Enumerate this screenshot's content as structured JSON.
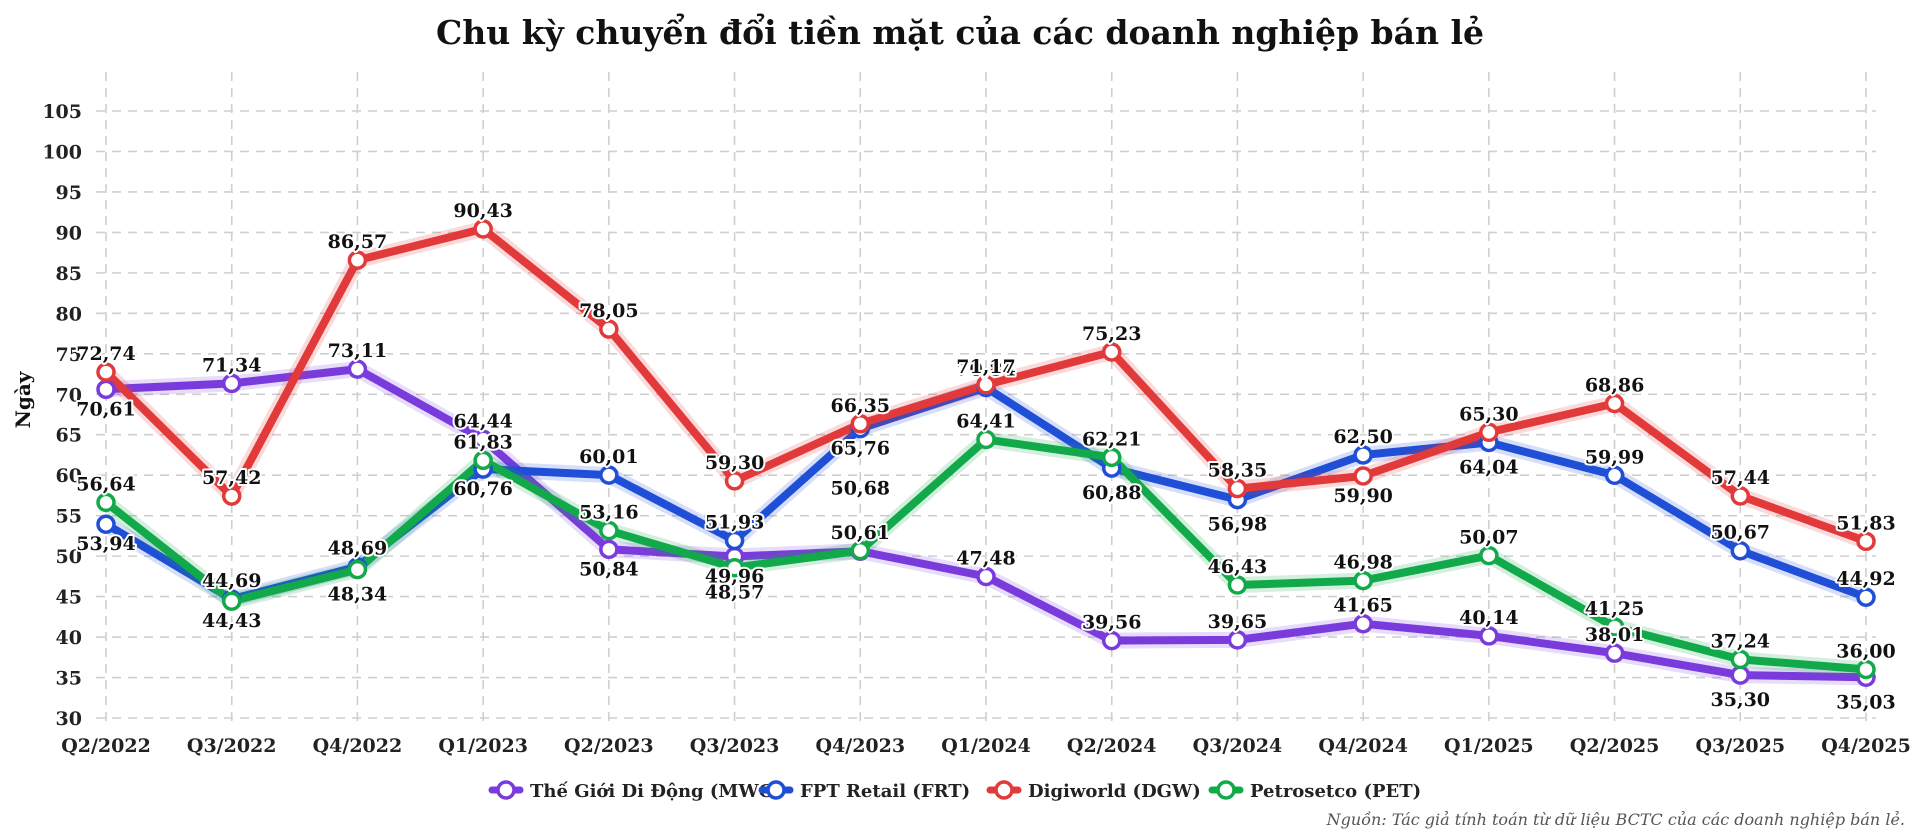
{
  "chart_data": {
    "type": "line",
    "title": "Chu kỳ chuyển đổi tiền mặt của các doanh nghiệp bán lẻ",
    "xlabel": "",
    "ylabel": "Ngày",
    "ylim": [
      30,
      105
    ],
    "yticks": [
      "30",
      "35",
      "40",
      "45",
      "50",
      "55",
      "60",
      "65",
      "70",
      "75",
      "80",
      "85",
      "90",
      "95",
      "100",
      "105"
    ],
    "grid": true,
    "legend_position": "bottom",
    "categories": [
      "Q2/2022",
      "Q3/2022",
      "Q4/2022",
      "Q1/2023",
      "Q2/2023",
      "Q3/2023",
      "Q4/2023",
      "Q1/2024",
      "Q2/2024",
      "Q3/2024",
      "Q4/2024",
      "Q1/2025",
      "Q2/2025",
      "Q3/2025",
      "Q4/2025"
    ],
    "series": [
      {
        "name": "Thế Giới Di Động (MWG)",
        "color": "#7a3bdc",
        "values": [
          70.61,
          71.34,
          73.11,
          64.44,
          50.84,
          49.96,
          50.61,
          47.48,
          39.56,
          39.65,
          41.65,
          40.14,
          38.01,
          35.3,
          35.03
        ],
        "labels": [
          "70,61",
          "71,34",
          "73,11",
          "64,44",
          "50,84",
          "49,96",
          "50,61",
          "47,48",
          "39,56",
          "39,65",
          "41,65",
          "40,14",
          "38,01",
          "35,30",
          "35,03"
        ]
      },
      {
        "name": "FPT Retail (FRT)",
        "color": "#1f4fd6",
        "values": [
          53.94,
          44.69,
          48.69,
          60.76,
          60.01,
          51.93,
          65.76,
          70.84,
          60.88,
          56.98,
          62.5,
          64.04,
          59.99,
          50.67,
          44.92
        ],
        "labels": [
          "53,94",
          "44,69",
          "48,69",
          "60,76",
          "60,01",
          "51,93",
          "65,76",
          "70,84",
          "60,88",
          "56,98",
          "62,50",
          "64,04",
          "59,99",
          "50,67",
          "44,92"
        ]
      },
      {
        "name": "Digiworld (DGW)",
        "color": "#e23a3a",
        "values": [
          72.74,
          57.42,
          86.57,
          90.43,
          78.05,
          59.3,
          66.35,
          71.17,
          75.23,
          58.35,
          59.9,
          65.3,
          68.86,
          57.44,
          51.83
        ],
        "labels": [
          "72,74",
          "57,42",
          "86,57",
          "90,43",
          "78,05",
          "59,30",
          "66,35",
          "71,17",
          "75,23",
          "58,35",
          "59,90",
          "65,30",
          "68,86",
          "57,44",
          "51,83"
        ]
      },
      {
        "name": "Petrosetco (PET)",
        "color": "#12a94a",
        "values": [
          56.64,
          44.43,
          48.34,
          61.83,
          53.16,
          48.57,
          50.68,
          64.41,
          62.21,
          46.43,
          46.98,
          50.07,
          41.25,
          37.24,
          36.0
        ],
        "labels": [
          "56,64",
          "44,43",
          "48,34",
          "61,83",
          "53,16",
          "48,57",
          "50,68",
          "64,41",
          "62,21",
          "46,43",
          "46,98",
          "50,07",
          "41,25",
          "37,24",
          "36,00"
        ]
      }
    ],
    "source": "Nguồn: Tác giả tính toán từ dữ liệu BCTC của các doanh nghiệp bán lẻ."
  }
}
